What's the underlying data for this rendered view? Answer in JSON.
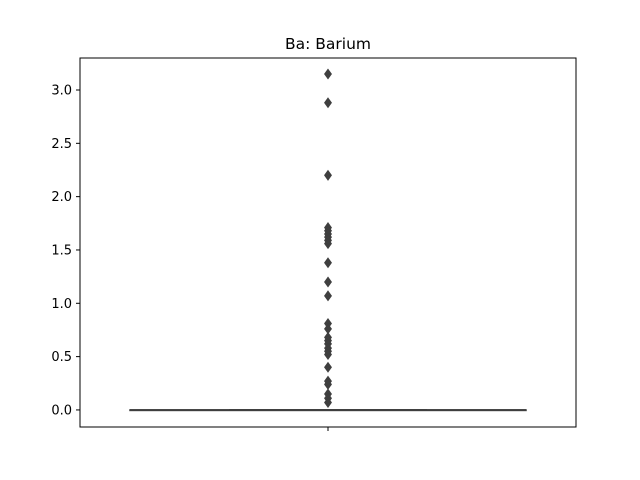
{
  "chart_data": {
    "type": "box",
    "title": "Ba: Barium",
    "xlabel": "",
    "ylabel": "",
    "x_ticks": [
      ""
    ],
    "ylim": [
      -0.16,
      3.3
    ],
    "yticks": [
      0.0,
      0.5,
      1.0,
      1.5,
      2.0,
      2.5,
      3.0
    ],
    "ytick_labels": [
      "0.0",
      "0.5",
      "1.0",
      "1.5",
      "2.0",
      "2.5",
      "3.0"
    ],
    "grid": false,
    "box": {
      "q1": 0.0,
      "median": 0.0,
      "q3": 0.0,
      "whisker_low": 0.0,
      "whisker_high": 0.0
    },
    "outliers": [
      3.15,
      2.88,
      2.2,
      1.71,
      1.68,
      1.65,
      1.62,
      1.59,
      1.56,
      1.38,
      1.2,
      1.07,
      0.81,
      0.76,
      0.68,
      0.65,
      0.62,
      0.58,
      0.55,
      0.52,
      0.4,
      0.27,
      0.24,
      0.15,
      0.11,
      0.07
    ],
    "colors": {
      "box_line": "#3f3f3f",
      "outlier_fill": "#3f3f3f",
      "axes": "#000000"
    }
  }
}
